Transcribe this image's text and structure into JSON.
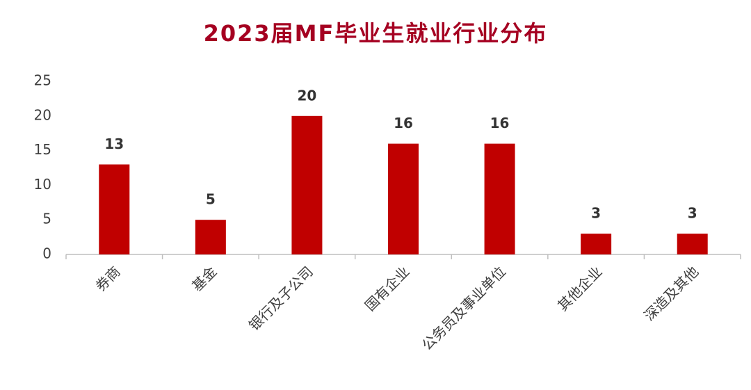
{
  "chart_data": {
    "type": "bar",
    "title": "2023届MF毕业生就业行业分布",
    "categories": [
      "券商",
      "基金",
      "银行及子公司",
      "国有企业",
      "公务员及事业单位",
      "其他企业",
      "深造及其他"
    ],
    "values": [
      13,
      5,
      20,
      16,
      16,
      3,
      3
    ],
    "color": "#c00000",
    "ylim": [
      0,
      25
    ],
    "yticks": [
      0,
      5,
      10,
      15,
      20,
      25
    ]
  }
}
